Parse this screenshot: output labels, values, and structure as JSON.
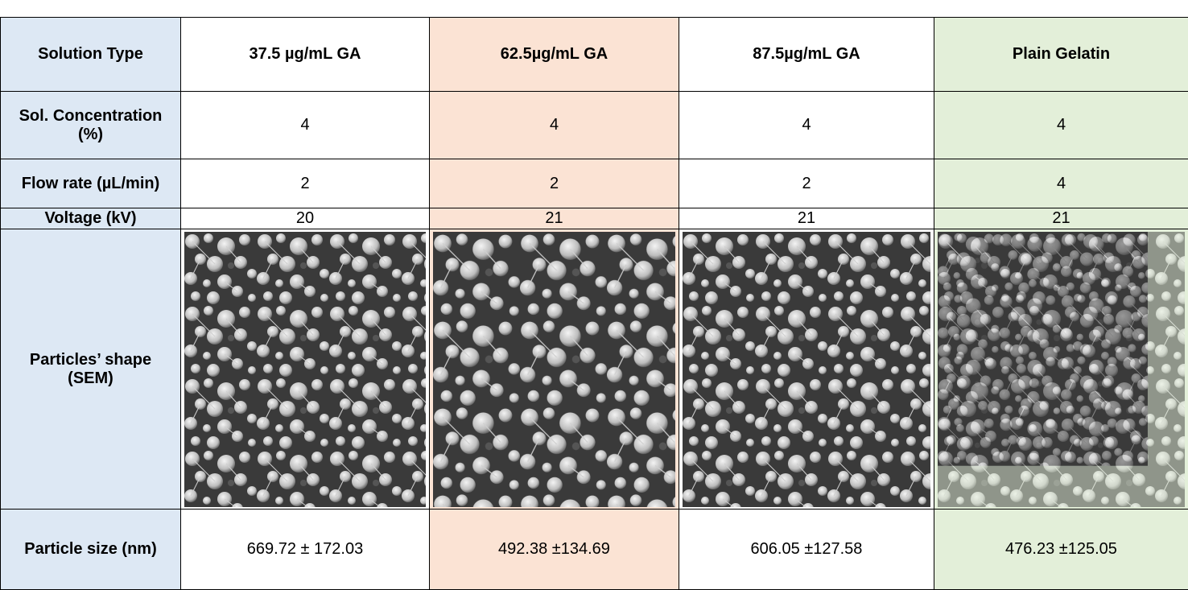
{
  "table": {
    "header": [
      "Solution Type",
      "37.5 µg/mL GA",
      "62.5µg/mL GA",
      "87.5µg/mL GA",
      "Plain Gelatin"
    ],
    "rows": [
      [
        "Sol. Concentration (%)",
        "4",
        "4",
        "4",
        "4"
      ],
      [
        "Flow rate (µL/min)",
        "2",
        "2",
        "2",
        "4"
      ],
      [
        "Voltage (kV)",
        "20",
        "21",
        "21",
        "21"
      ],
      [
        "Particles’ shape (SEM)"
      ],
      [
        "Particle size (nm)",
        "669.72 ± 172.03",
        "492.38 ±134.69",
        "606.05 ±127.58",
        "476.23 ±125.05"
      ]
    ]
  }
}
